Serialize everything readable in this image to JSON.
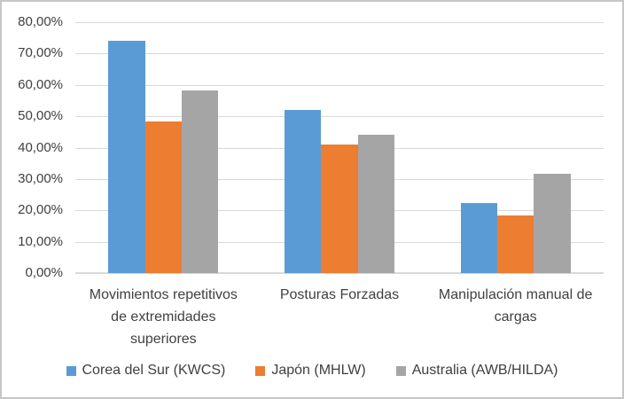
{
  "chart_data": {
    "type": "bar",
    "categories": [
      "Movimientos repetitivos de extremidades superiores",
      "Posturas Forzadas",
      "Manipulación manual de cargas"
    ],
    "category_lines": [
      [
        "Movimientos repetitivos",
        "de extremidades",
        "superiores"
      ],
      [
        "Posturas Forzadas"
      ],
      [
        "Manipulación manual de",
        "cargas"
      ]
    ],
    "series": [
      {
        "name": "Corea del Sur (KWCS)",
        "color": "#5B9BD5",
        "values": [
          74.2,
          51.9,
          22.2
        ]
      },
      {
        "name": "Japón (MHLW)",
        "color": "#ED7D31",
        "values": [
          48.3,
          41.0,
          18.5
        ]
      },
      {
        "name": "Australia (AWB/HILDA)",
        "color": "#A5A5A5",
        "values": [
          58.2,
          44.1,
          31.7
        ]
      }
    ],
    "title": "",
    "xlabel": "",
    "ylabel": "",
    "ylim": [
      0,
      80
    ],
    "ytick_step": 10,
    "ytick_labels": [
      "0,00%",
      "10,00%",
      "20,00%",
      "30,00%",
      "40,00%",
      "50,00%",
      "60,00%",
      "70,00%",
      "80,00%"
    ],
    "grid": true,
    "grid_color": "#D9D9D9",
    "axis_line_color": "#D9D9D9",
    "text_color": "#404040",
    "legend_position": "bottom",
    "legend": [
      "Corea del Sur (KWCS)",
      "Japón (MHLW)",
      "Australia (AWB/HILDA)"
    ]
  }
}
